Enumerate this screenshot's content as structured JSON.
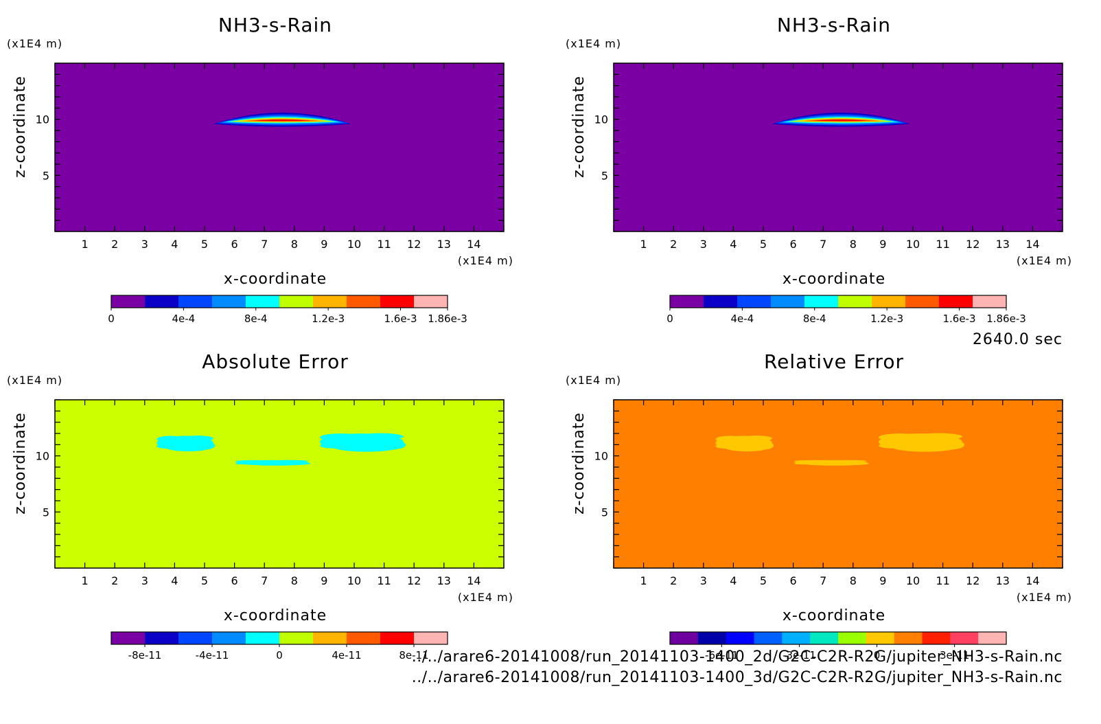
{
  "time_label": "2640.0 sec",
  "footer": {
    "file_2d": "../../arare6-20141008/run_20141103-1400_2d/G2C-C2R-R2G/jupiter_NH3-s-Rain.nc",
    "file_3d": "../../arare6-20141008/run_20141103-1400_3d/G2C-C2R-R2G/jupiter_NH3-s-Rain.nc"
  },
  "chart_data": [
    {
      "type": "heatmap",
      "title": "NH3-s-Rain",
      "xlabel": "x-coordinate",
      "ylabel": "z-coordinate",
      "x_unit": "(x1E4 m)",
      "y_unit": "(x1E4 m)",
      "xlim": [
        0,
        15
      ],
      "ylim": [
        0,
        15
      ],
      "x_ticks": [
        "1",
        "2",
        "3",
        "4",
        "5",
        "6",
        "7",
        "8",
        "9",
        "10",
        "11",
        "12",
        "13",
        "14"
      ],
      "y_ticks": [
        "5",
        "10"
      ],
      "background": "#7b00a3",
      "features": [
        {
          "kind": "lens",
          "x_range": [
            5.3,
            9.9
          ],
          "z_center": 9.9,
          "thickness": 0.9,
          "peak": 0.00186
        }
      ],
      "colorbar": {
        "colors": [
          "#7b00a3",
          "#0b00c6",
          "#0045ff",
          "#008cff",
          "#00ffff",
          "#bfff00",
          "#ffb400",
          "#ff5a00",
          "#ff0000",
          "#ffb4b4"
        ],
        "tick_labels": [
          "0",
          "4e-4",
          "8e-4",
          "1.2e-3",
          "1.6e-3",
          "1.86e-3"
        ],
        "range": [
          0,
          0.00186
        ]
      }
    },
    {
      "type": "heatmap",
      "title": "NH3-s-Rain",
      "xlabel": "x-coordinate",
      "ylabel": "z-coordinate",
      "x_unit": "(x1E4 m)",
      "y_unit": "(x1E4 m)",
      "xlim": [
        0,
        15
      ],
      "ylim": [
        0,
        15
      ],
      "x_ticks": [
        "1",
        "2",
        "3",
        "4",
        "5",
        "6",
        "7",
        "8",
        "9",
        "10",
        "11",
        "12",
        "13",
        "14"
      ],
      "y_ticks": [
        "5",
        "10"
      ],
      "background": "#7b00a3",
      "features": [
        {
          "kind": "lens",
          "x_range": [
            5.3,
            9.9
          ],
          "z_center": 9.9,
          "thickness": 0.9,
          "peak": 0.00186
        }
      ],
      "colorbar": {
        "colors": [
          "#7b00a3",
          "#0b00c6",
          "#0045ff",
          "#008cff",
          "#00ffff",
          "#bfff00",
          "#ffb400",
          "#ff5a00",
          "#ff0000",
          "#ffb4b4"
        ],
        "tick_labels": [
          "0",
          "4e-4",
          "8e-4",
          "1.2e-3",
          "1.6e-3",
          "1.86e-3"
        ],
        "range": [
          0,
          0.00186
        ]
      }
    },
    {
      "type": "heatmap",
      "title": "Absolute Error",
      "xlabel": "x-coordinate",
      "ylabel": "z-coordinate",
      "x_unit": "(x1E4 m)",
      "y_unit": "(x1E4 m)",
      "xlim": [
        0,
        15
      ],
      "ylim": [
        0,
        15
      ],
      "x_ticks": [
        "1",
        "2",
        "3",
        "4",
        "5",
        "6",
        "7",
        "8",
        "9",
        "10",
        "11",
        "12",
        "13",
        "14"
      ],
      "y_ticks": [
        "5",
        "10"
      ],
      "background": "#ccff00",
      "features": [
        {
          "kind": "blob",
          "color": "#00ffff",
          "x_range": [
            3.3,
            5.4
          ],
          "z_range": [
            10.0,
            12.3
          ]
        },
        {
          "kind": "blob",
          "color": "#00ffff",
          "x_range": [
            5.9,
            8.6
          ],
          "z_range": [
            9.0,
            9.8
          ]
        },
        {
          "kind": "blob",
          "color": "#00ffff",
          "x_range": [
            8.7,
            11.8
          ],
          "z_range": [
            9.9,
            12.6
          ]
        }
      ],
      "colorbar": {
        "colors": [
          "#7b00a3",
          "#0b00c6",
          "#0045ff",
          "#008cff",
          "#00ffff",
          "#bfff00",
          "#ffb400",
          "#ff5a00",
          "#ff0000",
          "#ffb4b4"
        ],
        "tick_labels": [
          "-8e-11",
          "-4e-11",
          "0",
          "4e-11",
          "8e-11"
        ],
        "range": [
          -1e-10,
          1e-10
        ]
      }
    },
    {
      "type": "heatmap",
      "title": "Relative Error",
      "xlabel": "x-coordinate",
      "ylabel": "z-coordinate",
      "x_unit": "(x1E4 m)",
      "y_unit": "(x1E4 m)",
      "xlim": [
        0,
        15
      ],
      "ylim": [
        0,
        15
      ],
      "x_ticks": [
        "1",
        "2",
        "3",
        "4",
        "5",
        "6",
        "7",
        "8",
        "9",
        "10",
        "11",
        "12",
        "13",
        "14"
      ],
      "y_ticks": [
        "5",
        "10"
      ],
      "background": "#ff8000",
      "features": [
        {
          "kind": "blob",
          "color": "#ffc800",
          "x_range": [
            3.3,
            5.4
          ],
          "z_range": [
            10.0,
            12.3
          ]
        },
        {
          "kind": "blob",
          "color": "#ffc800",
          "x_range": [
            5.9,
            8.6
          ],
          "z_range": [
            9.0,
            9.8
          ]
        },
        {
          "kind": "blob",
          "color": "#ffc800",
          "x_range": [
            8.7,
            11.8
          ],
          "z_range": [
            9.9,
            12.6
          ]
        }
      ],
      "colorbar": {
        "colors": [
          "#6e00a0",
          "#0000a8",
          "#0000ff",
          "#0060ff",
          "#00b0ff",
          "#00e8c0",
          "#9aff00",
          "#ffc800",
          "#ff8000",
          "#ff2000",
          "#ff4060",
          "#ffb4b4"
        ],
        "tick_labels": [
          "-6e-11",
          "-3e-11",
          "0",
          "3e-11"
        ],
        "range": [
          -8e-11,
          5e-11
        ]
      }
    }
  ]
}
